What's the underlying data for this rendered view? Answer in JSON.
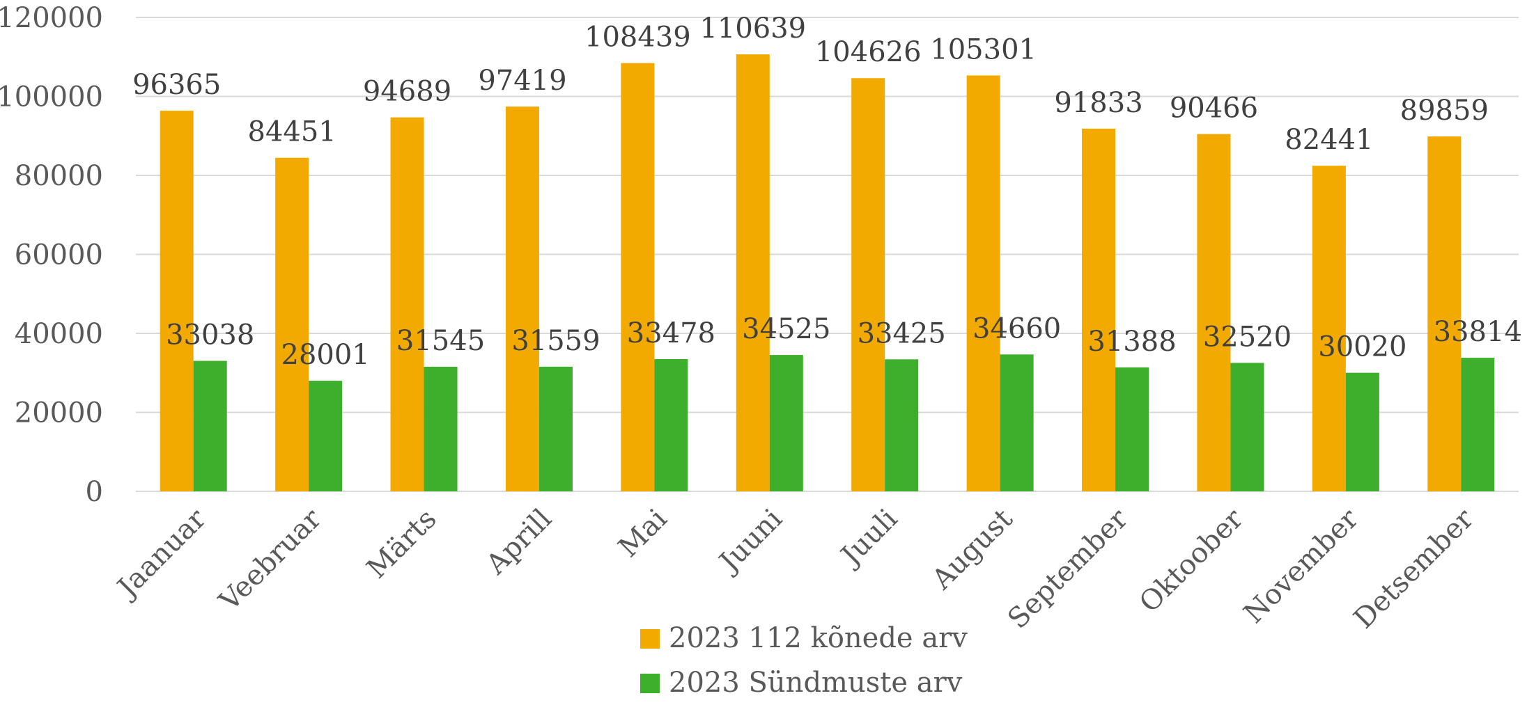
{
  "chart_data": {
    "type": "bar",
    "title": "",
    "xlabel": "",
    "ylabel": "",
    "categories": [
      "Jaanuar",
      "Veebruar",
      "Märts",
      "Aprill",
      "Mai",
      "Juuni",
      "Juuli",
      "August",
      "September",
      "Oktoober",
      "November",
      "Detsember"
    ],
    "series": [
      {
        "name": "2023 112 kõnede arv",
        "color": "#F2A900",
        "values": [
          96365,
          84451,
          94689,
          97419,
          108439,
          110639,
          104626,
          105301,
          91833,
          90466,
          82441,
          89859
        ]
      },
      {
        "name": "2023 Sündmuste arv",
        "color": "#3EAF2C",
        "values": [
          33038,
          28001,
          31545,
          31559,
          33478,
          34525,
          33425,
          34660,
          31388,
          32520,
          30020,
          33814
        ]
      }
    ],
    "ylim": [
      0,
      120000
    ],
    "yticks": [
      0,
      20000,
      40000,
      60000,
      80000,
      100000,
      120000
    ],
    "grid": true,
    "legend_position": "bottom",
    "data_labels": true
  }
}
